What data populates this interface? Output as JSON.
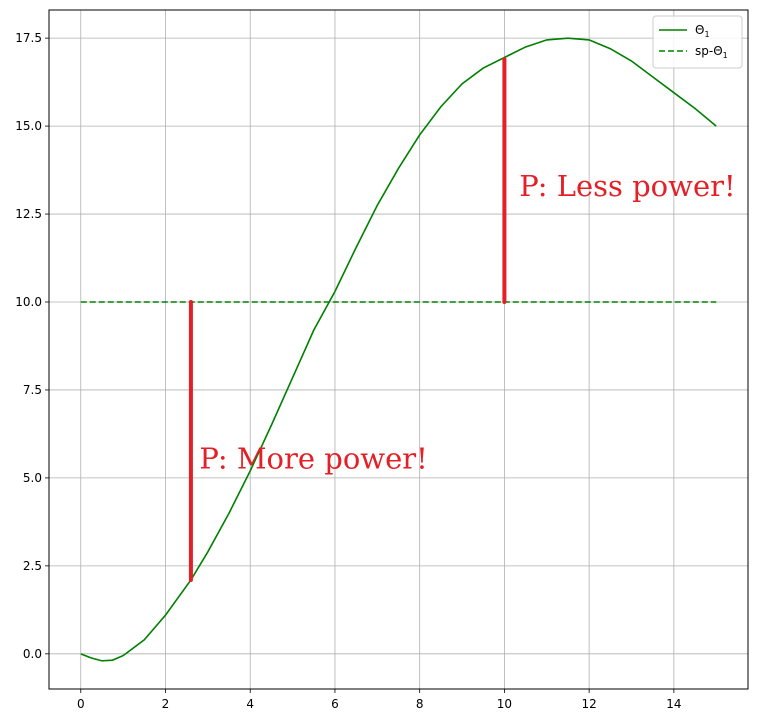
{
  "chart_data": {
    "type": "line",
    "title": "",
    "xlabel": "",
    "ylabel": "",
    "xlim": [
      -0.75,
      15.75
    ],
    "ylim": [
      -1.0,
      18.3
    ],
    "grid": true,
    "legend_position": "top-right",
    "xticks": [
      0,
      2,
      4,
      6,
      8,
      10,
      12,
      14
    ],
    "xtick_labels": [
      "0",
      "2",
      "4",
      "6",
      "8",
      "10",
      "12",
      "14"
    ],
    "yticks": [
      0.0,
      2.5,
      5.0,
      7.5,
      10.0,
      12.5,
      15.0,
      17.5
    ],
    "ytick_labels": [
      "0.0",
      "2.5",
      "5.0",
      "7.5",
      "10.0",
      "12.5",
      "15.0",
      "17.5"
    ],
    "series": [
      {
        "name": "Θ",
        "name_subscript": "1",
        "style": "solid",
        "color": "#008000",
        "x": [
          0,
          0.25,
          0.5,
          0.75,
          1,
          1.5,
          2,
          2.6,
          3,
          3.5,
          4,
          4.5,
          5,
          5.5,
          6,
          6.5,
          7,
          7.5,
          8,
          8.5,
          9,
          9.5,
          10,
          10.5,
          11,
          11.5,
          12,
          12.5,
          13,
          13.5,
          14,
          14.5,
          15
        ],
        "values": [
          0.0,
          -0.12,
          -0.2,
          -0.18,
          -0.05,
          0.4,
          1.1,
          2.1,
          2.9,
          4.0,
          5.2,
          6.5,
          7.85,
          9.2,
          10.3,
          11.55,
          12.75,
          13.8,
          14.75,
          15.55,
          16.2,
          16.65,
          16.95,
          17.25,
          17.45,
          17.5,
          17.45,
          17.2,
          16.85,
          16.4,
          15.95,
          15.5,
          15.0
        ]
      },
      {
        "name": "sp-Θ",
        "name_subscript": "1",
        "style": "dashed",
        "color": "#008000",
        "x": [
          0,
          15
        ],
        "values": [
          10.0,
          10.0
        ]
      }
    ],
    "error_bars": [
      {
        "x": 2.6,
        "y_from": 2.1,
        "y_to": 10.0,
        "color": "#e41f26"
      },
      {
        "x": 10.0,
        "y_from": 10.0,
        "y_to": 16.9,
        "color": "#e41f26"
      }
    ],
    "annotations": [
      {
        "text": "P: More power!",
        "x": 2.8,
        "y": 5.55
      },
      {
        "text": "P: Less power!",
        "x": 10.35,
        "y": 13.3
      }
    ]
  }
}
